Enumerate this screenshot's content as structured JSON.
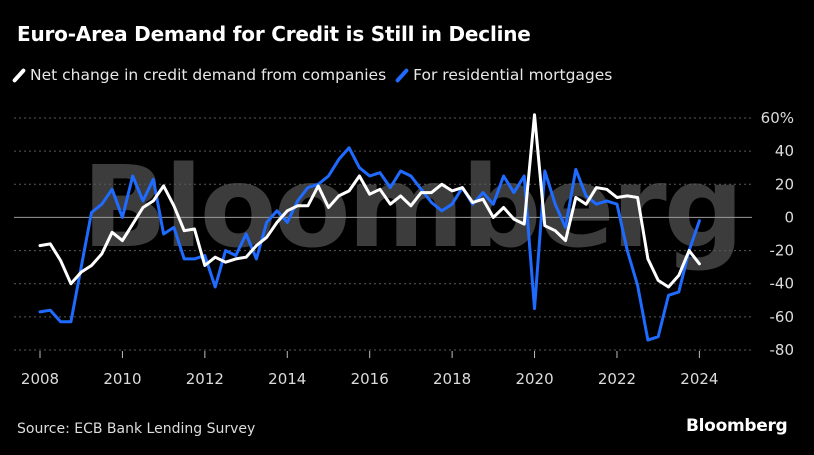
{
  "title": "Euro-Area Demand for Credit is Still in Decline",
  "source": "Source: ECB Bank Lending Survey",
  "brand": "Bloomberg",
  "watermark": "Bloomberg",
  "colors": {
    "companies": "#ffffff",
    "mortgages": "#1f6bff",
    "grid": "#5a5a5a",
    "background": "#000000"
  },
  "chart_data": {
    "type": "line",
    "xlim": [
      2008,
      2024.5
    ],
    "ylim": [
      -80,
      60
    ],
    "y_ticks": [
      60,
      40,
      20,
      0,
      -20,
      -40,
      -60,
      -80
    ],
    "y_tick_labels": [
      "60%",
      "40",
      "20",
      "0",
      "-20",
      "-40",
      "-60",
      "-80"
    ],
    "x_ticks": [
      2008,
      2010,
      2012,
      2014,
      2016,
      2018,
      2020,
      2022,
      2024
    ],
    "x_tick_labels": [
      "2008",
      "2010",
      "2012",
      "2014",
      "2016",
      "2018",
      "2020",
      "2022",
      "2024"
    ],
    "grid": true,
    "legend": "top-left",
    "series": [
      {
        "name": "Net change in credit demand from companies",
        "color": "#ffffff",
        "x": [
          2008.0,
          2008.25,
          2008.5,
          2008.75,
          2009.0,
          2009.25,
          2009.5,
          2009.75,
          2010.0,
          2010.25,
          2010.5,
          2010.75,
          2011.0,
          2011.25,
          2011.5,
          2011.75,
          2012.0,
          2012.25,
          2012.5,
          2012.75,
          2013.0,
          2013.25,
          2013.5,
          2013.75,
          2014.0,
          2014.25,
          2014.5,
          2014.75,
          2015.0,
          2015.25,
          2015.5,
          2015.75,
          2016.0,
          2016.25,
          2016.5,
          2016.75,
          2017.0,
          2017.25,
          2017.5,
          2017.75,
          2018.0,
          2018.25,
          2018.5,
          2018.75,
          2019.0,
          2019.25,
          2019.5,
          2019.75,
          2020.0,
          2020.25,
          2020.5,
          2020.75,
          2021.0,
          2021.25,
          2021.5,
          2021.75,
          2022.0,
          2022.25,
          2022.5,
          2022.75,
          2023.0,
          2023.25,
          2023.5,
          2023.75,
          2024.0
        ],
        "values": [
          -17,
          -16,
          -26,
          -40,
          -33,
          -29,
          -22,
          -9,
          -14,
          -4,
          6,
          10,
          19,
          7,
          -8,
          -7,
          -29,
          -24,
          -27,
          -25,
          -24,
          -17,
          -12,
          -3,
          4,
          7,
          7,
          19,
          6,
          13,
          16,
          25,
          14,
          17,
          8,
          13,
          7,
          15,
          15,
          20,
          16,
          18,
          9,
          11,
          0,
          6,
          -1,
          -4,
          62,
          -5,
          -8,
          -14,
          12,
          8,
          18,
          17,
          12,
          13,
          12,
          -25,
          -38,
          -42,
          -35,
          -20,
          -28
        ]
      },
      {
        "name": "For residential mortgages",
        "color": "#1f6bff",
        "x": [
          2008.0,
          2008.25,
          2008.5,
          2008.75,
          2009.0,
          2009.25,
          2009.5,
          2009.75,
          2010.0,
          2010.25,
          2010.5,
          2010.75,
          2011.0,
          2011.25,
          2011.5,
          2011.75,
          2012.0,
          2012.25,
          2012.5,
          2012.75,
          2013.0,
          2013.25,
          2013.5,
          2013.75,
          2014.0,
          2014.25,
          2014.5,
          2014.75,
          2015.0,
          2015.25,
          2015.5,
          2015.75,
          2016.0,
          2016.25,
          2016.5,
          2016.75,
          2017.0,
          2017.25,
          2017.5,
          2017.75,
          2018.0,
          2018.25,
          2018.5,
          2018.75,
          2019.0,
          2019.25,
          2019.5,
          2019.75,
          2020.0,
          2020.25,
          2020.5,
          2020.75,
          2021.0,
          2021.25,
          2021.5,
          2021.75,
          2022.0,
          2022.25,
          2022.5,
          2022.75,
          2023.0,
          2023.25,
          2023.5,
          2023.75,
          2024.0
        ],
        "values": [
          -57,
          -56,
          -63,
          -63,
          -30,
          3,
          8,
          17,
          0,
          25,
          10,
          23,
          -10,
          -6,
          -25,
          -25,
          -23,
          -42,
          -20,
          -23,
          -10,
          -25,
          -3,
          4,
          -3,
          10,
          18,
          20,
          25,
          35,
          42,
          30,
          25,
          27,
          18,
          28,
          25,
          17,
          9,
          4,
          8,
          18,
          8,
          15,
          8,
          25,
          15,
          25,
          -55,
          28,
          8,
          -6,
          29,
          13,
          8,
          10,
          8,
          -20,
          -41,
          -74,
          -72,
          -47,
          -45,
          -20,
          -2
        ]
      }
    ]
  }
}
